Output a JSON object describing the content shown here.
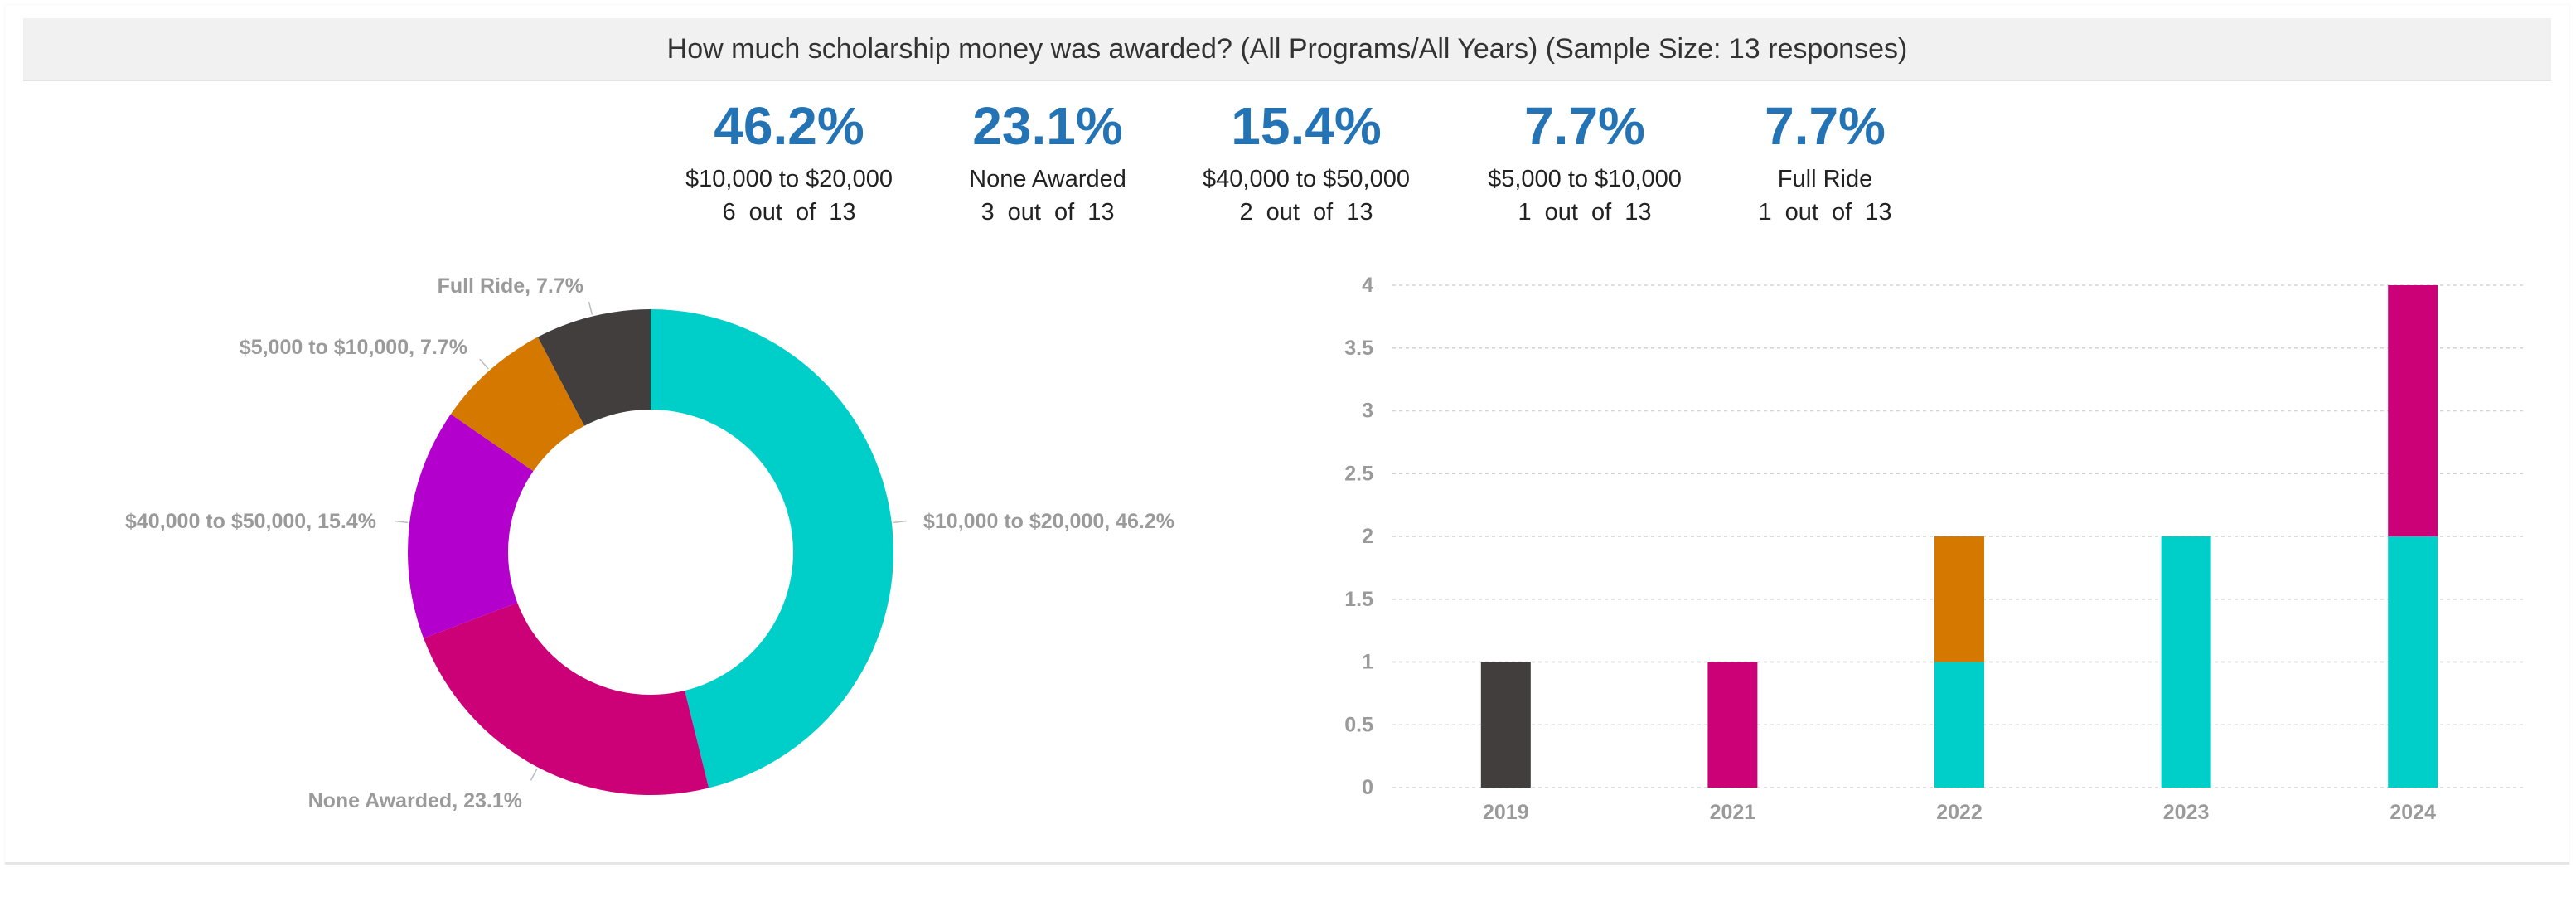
{
  "title": "How much scholarship money was awarded? (All Programs/All Years) (Sample Size: 13 responses)",
  "colors": {
    "teal": "#00cec9",
    "magenta": "#cc0077",
    "purple": "#b300cc",
    "orange": "#d47800",
    "dark": "#433e3e",
    "stat_blue": "#2474b5"
  },
  "stats": [
    {
      "pct": "46.2%",
      "label": "$10,000 to $20,000",
      "count": "6 out of 13"
    },
    {
      "pct": "23.1%",
      "label": "None Awarded",
      "count": "3 out of 13"
    },
    {
      "pct": "15.4%",
      "label": "$40,000 to $50,000",
      "count": "2 out of 13"
    },
    {
      "pct": "7.7%",
      "label": "$5,000 to $10,000",
      "count": "1 out of 13"
    },
    {
      "pct": "7.7%",
      "label": "Full Ride",
      "count": "1 out of 13"
    }
  ],
  "chart_data": [
    {
      "type": "pie",
      "donut": true,
      "slices": [
        {
          "label": "$10,000 to $20,000",
          "value": 46.2,
          "text": "$10,000 to $20,000, 46.2%",
          "color": "#00cec9"
        },
        {
          "label": "None Awarded",
          "value": 23.1,
          "text": "None Awarded, 23.1%",
          "color": "#cc0077"
        },
        {
          "label": "$40,000 to $50,000",
          "value": 15.4,
          "text": "$40,000 to $50,000, 15.4%",
          "color": "#b300cc"
        },
        {
          "label": "$5,000 to $10,000",
          "value": 7.7,
          "text": "$5,000 to $10,000, 7.7%",
          "color": "#d47800"
        },
        {
          "label": "Full Ride",
          "value": 7.7,
          "text": "Full Ride, 7.7%",
          "color": "#433e3e"
        }
      ]
    },
    {
      "type": "bar",
      "stacked": true,
      "categories": [
        "2019",
        "2021",
        "2022",
        "2023",
        "2024"
      ],
      "yticks": [
        "0",
        "0.5",
        "1",
        "1.5",
        "2",
        "2.5",
        "3",
        "3.5",
        "4"
      ],
      "ylim": [
        0,
        4
      ],
      "grid": true,
      "series": [
        {
          "key": "10k-20k",
          "color": "#00cec9",
          "values": [
            0,
            0,
            1,
            2,
            2
          ]
        },
        {
          "key": "5k-10k",
          "color": "#d47800",
          "values": [
            0,
            0,
            1,
            0,
            0
          ]
        },
        {
          "key": "none",
          "color": "#cc0077",
          "values": [
            0,
            1,
            0,
            0,
            2
          ]
        },
        {
          "key": "full-ride",
          "color": "#433e3e",
          "values": [
            1,
            0,
            0,
            0,
            0
          ]
        }
      ]
    }
  ]
}
